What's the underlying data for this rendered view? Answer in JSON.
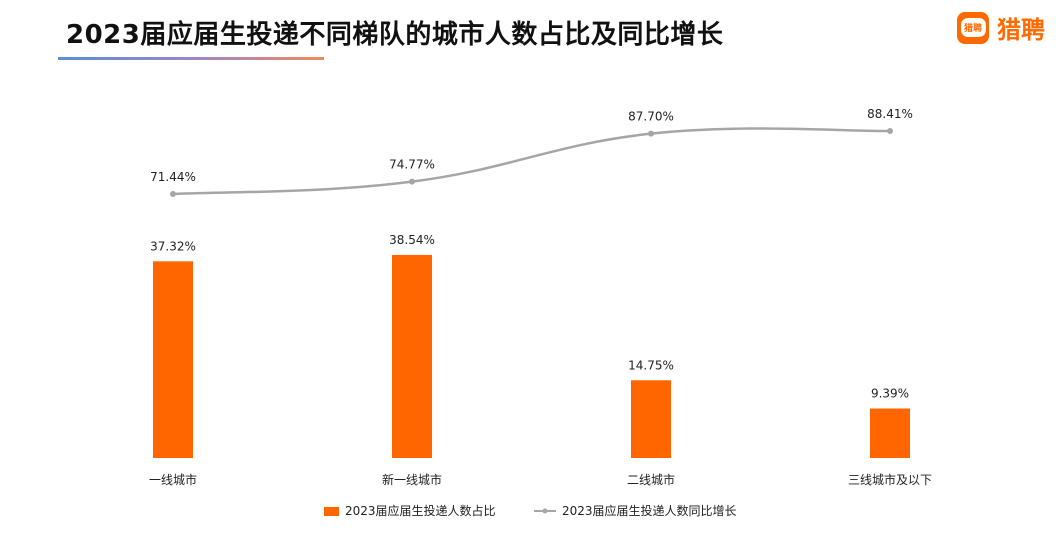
{
  "header": {
    "title": "2023届应届生投递不同梯队的城市人数占比及同比增长",
    "logo_badge_text": "猎聘",
    "logo_text": "猎聘"
  },
  "chart_data": {
    "type": "bar",
    "categories": [
      "一线城市",
      "新一线城市",
      "二线城市",
      "三线城市及以下"
    ],
    "series": [
      {
        "name": "2023届应届生投递人数占比",
        "type": "bar",
        "values": [
          37.32,
          38.54,
          14.75,
          9.39
        ],
        "labels": [
          "37.32%",
          "38.54%",
          "14.75%",
          "9.39%"
        ],
        "color": "#FF6600"
      },
      {
        "name": "2023届应届生投递人数同比增长",
        "type": "line",
        "values": [
          71.44,
          74.77,
          87.7,
          88.41
        ],
        "labels": [
          "71.44%",
          "74.77%",
          "87.70%",
          "88.41%"
        ],
        "color": "#A6A6A6"
      }
    ],
    "grid": false,
    "legend_position": "bottom"
  }
}
